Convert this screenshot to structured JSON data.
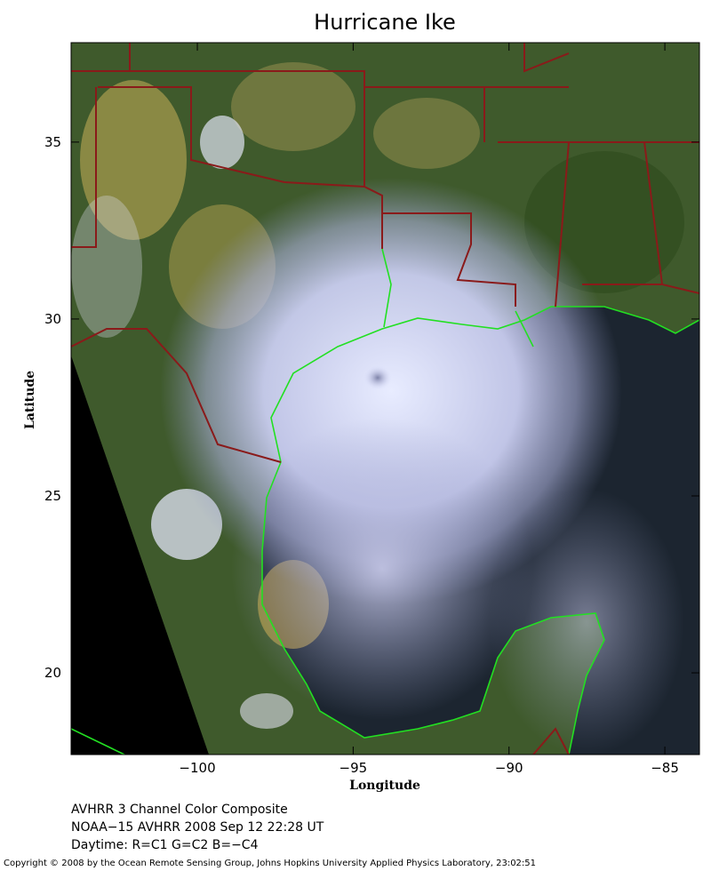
{
  "title": "Hurricane Ike",
  "map": {
    "xlabel": "Longitude",
    "ylabel": "Latitude",
    "xlim": [
      -104.05,
      -83.89
    ],
    "ylim": [
      17.69,
      37.81
    ],
    "xticks": [
      {
        "value": -100,
        "label": "−100"
      },
      {
        "value": -95,
        "label": "−95"
      },
      {
        "value": -90,
        "label": "−90"
      },
      {
        "value": -85,
        "label": "−85"
      }
    ],
    "yticks": [
      20,
      25,
      30,
      35
    ]
  },
  "caption": [
    "AVHRR 3 Channel Color Composite",
    "NOAA−15 AVHRR 2008 Sep 12 22:28 UT",
    "Daytime: R=C1 G=C2 B=−C4"
  ],
  "copyright": "Copyright © 2008 by the Ocean Remote Sensing Group, Johns Hopkins University Applied Physics Laboratory, 23:02:51"
}
